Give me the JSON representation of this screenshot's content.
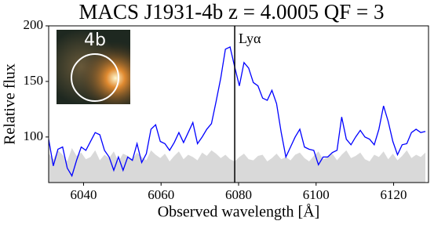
{
  "chart_data": {
    "type": "line",
    "title": "MACS J1931-4b z = 4.0005 QF = 3",
    "xlabel": "Observed wavelength  [Å]",
    "ylabel": "Relative flux",
    "x": [
      6031,
      6032.2,
      6033.4,
      6034.6,
      6035.8,
      6037,
      6038.2,
      6039.4,
      6040.6,
      6041.8,
      6043,
      6044.2,
      6045.4,
      6046.6,
      6047.8,
      6049,
      6050.2,
      6051.4,
      6052.6,
      6053.8,
      6055,
      6056.2,
      6057.4,
      6058.6,
      6059.8,
      6061,
      6062.2,
      6063.4,
      6064.6,
      6065.8,
      6067,
      6068.2,
      6069.4,
      6070.6,
      6071.8,
      6073,
      6074.2,
      6075.4,
      6076.6,
      6077.8,
      6079,
      6080.2,
      6081.4,
      6082.6,
      6083.8,
      6085,
      6086.2,
      6087.4,
      6088.6,
      6089.8,
      6091,
      6092.2,
      6093.4,
      6094.6,
      6095.8,
      6097,
      6098.2,
      6099.4,
      6100.6,
      6101.8,
      6103,
      6104.2,
      6105.4,
      6106.6,
      6107.8,
      6109,
      6110.2,
      6111.4,
      6112.6,
      6113.8,
      6115,
      6116.2,
      6117.4,
      6118.6,
      6119.8,
      6121,
      6122.2,
      6123.4,
      6124.6,
      6125.8,
      6127,
      6128.2
    ],
    "series": [
      {
        "color": "#0000ff",
        "values": [
          98,
          74,
          89,
          91,
          72,
          65,
          79,
          91,
          88,
          96,
          104,
          102,
          88,
          82,
          70,
          82,
          70,
          82,
          79,
          94,
          77,
          85,
          107,
          111,
          96,
          94,
          88,
          95,
          104,
          95,
          104,
          113,
          94,
          100,
          107,
          112,
          132,
          153,
          179,
          181,
          163,
          146,
          167,
          162,
          149,
          146,
          135,
          133,
          142,
          130,
          104,
          82,
          91,
          100,
          107,
          91,
          89,
          88,
          75,
          82,
          82,
          86,
          88,
          118,
          98,
          93,
          100,
          106,
          100,
          98,
          93,
          107,
          128,
          114,
          96,
          84,
          93,
          94,
          104,
          107,
          104,
          105
        ]
      }
    ],
    "noise": {
      "color": "#d9d9d9",
      "values": [
        85,
        80,
        88,
        84,
        78,
        90,
        83,
        86,
        80,
        82,
        88,
        79,
        84,
        81,
        87,
        78,
        85,
        83,
        80,
        86,
        82,
        79,
        88,
        84,
        81,
        85,
        78,
        83,
        87,
        80,
        84,
        82,
        79,
        86,
        83,
        88,
        85,
        81,
        84,
        80,
        78,
        82,
        85,
        80,
        79,
        83,
        84,
        78,
        81,
        85,
        80,
        82,
        79,
        84,
        86,
        81,
        78,
        83,
        87,
        80,
        82,
        85,
        79,
        84,
        88,
        81,
        83,
        86,
        80,
        78,
        84,
        82,
        87,
        80,
        85,
        79,
        83,
        88,
        81,
        84,
        82,
        86
      ]
    },
    "vline": 6079,
    "vline_label": "Lyα",
    "inset_label": "4b",
    "xlim": [
      6031,
      6129
    ],
    "xticks": [
      6040,
      6060,
      6080,
      6100,
      6120
    ],
    "ylim": [
      59,
      200
    ],
    "yticks": [
      100,
      150,
      200
    ]
  }
}
